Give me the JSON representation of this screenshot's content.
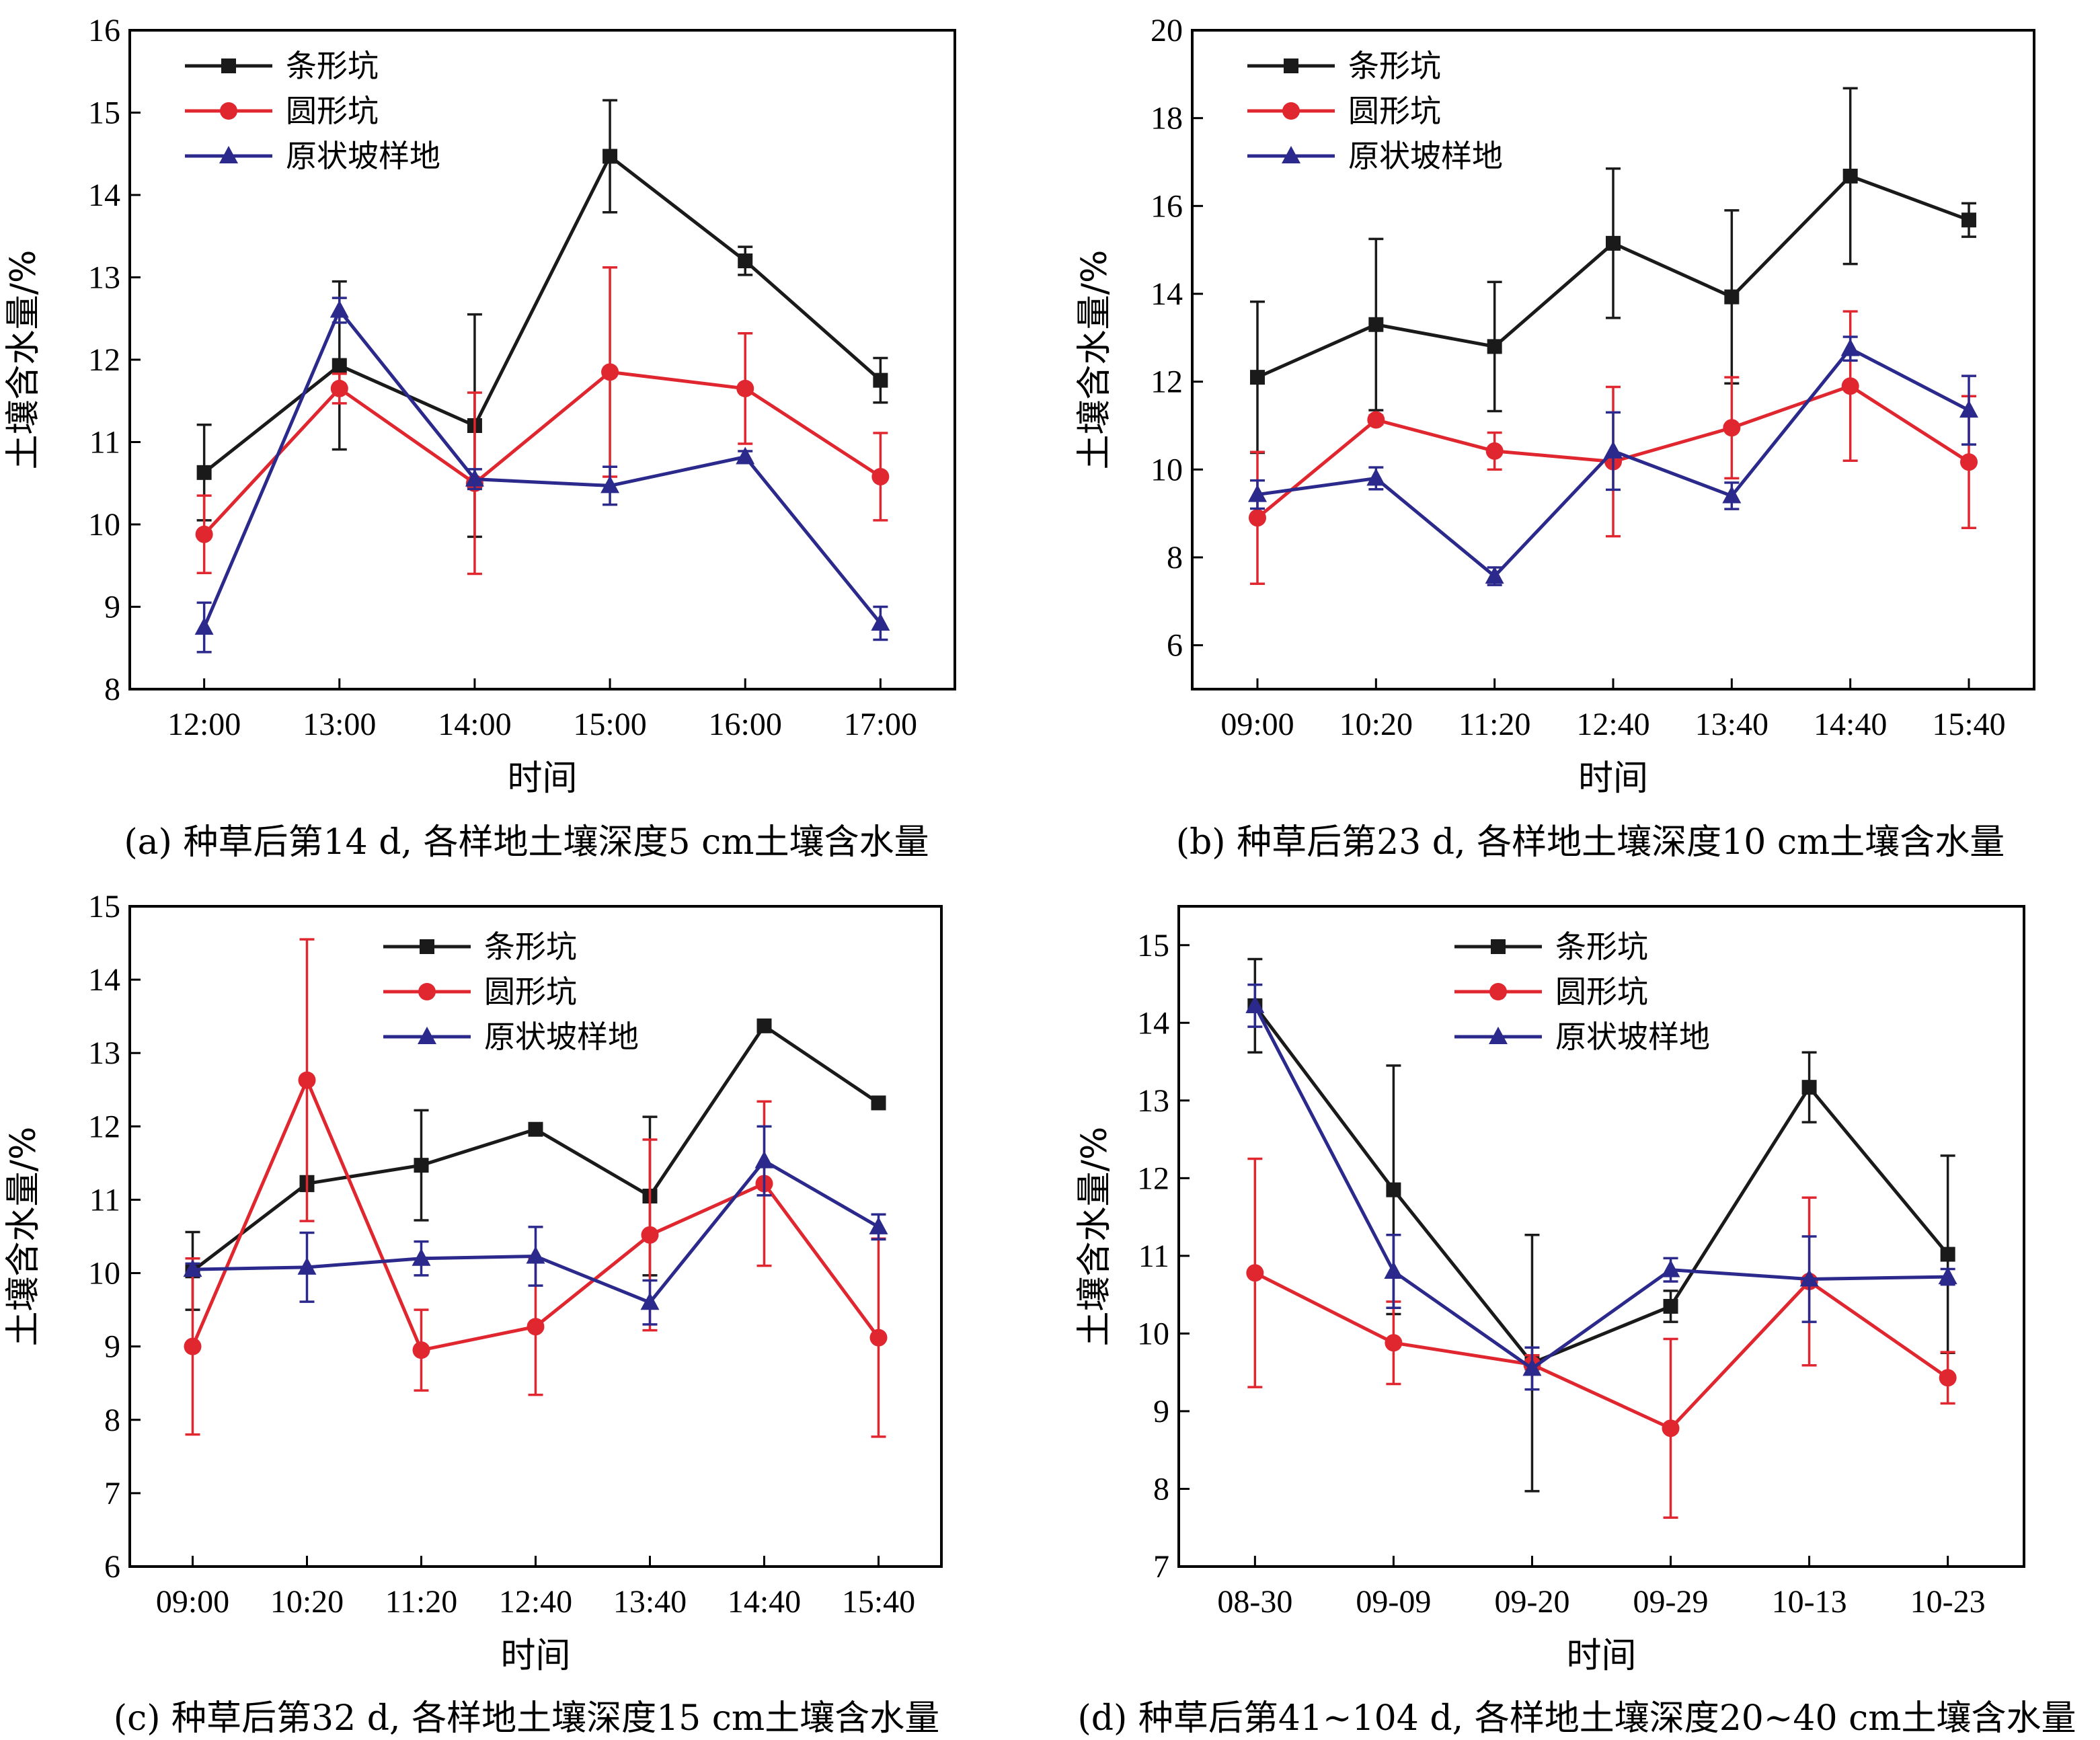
{
  "colors": {
    "条形坑": "#1a1a1a",
    "圆形坑": "#e0262e",
    "原状坡样地": "#2b2a8c"
  },
  "markers": {
    "条形坑": "square",
    "圆形坑": "circle",
    "原状坡样地": "triangle"
  },
  "chart_data": [
    {
      "type": "line",
      "caption": "(a) 种草后第14 d, 各样地土壤深度5 cm土壤含水量",
      "xlabel": "时间",
      "ylabel": "土壤含水量/%",
      "categories": [
        "12:00",
        "13:00",
        "14:00",
        "15:00",
        "16:00",
        "17:00"
      ],
      "ylim": [
        8,
        16
      ],
      "yticks": [
        8,
        9,
        10,
        11,
        12,
        13,
        14,
        15,
        16
      ],
      "legend_position": "top-left",
      "series": [
        {
          "name": "条形坑",
          "values": [
            10.63,
            11.93,
            11.2,
            14.47,
            13.2,
            11.75
          ],
          "errors": [
            0.58,
            1.02,
            1.35,
            0.68,
            0.17,
            0.27
          ]
        },
        {
          "name": "圆形坑",
          "values": [
            9.88,
            11.65,
            10.5,
            11.85,
            11.65,
            10.58
          ],
          "errors": [
            0.47,
            0.18,
            1.1,
            1.27,
            0.67,
            0.53
          ]
        },
        {
          "name": "原状坡样地",
          "values": [
            8.75,
            12.6,
            10.55,
            10.47,
            10.82,
            8.8
          ],
          "errors": [
            0.3,
            0.15,
            0.12,
            0.23,
            0.07,
            0.2
          ]
        }
      ]
    },
    {
      "type": "line",
      "caption": "(b) 种草后第23 d, 各样地土壤深度10 cm土壤含水量",
      "xlabel": "时间",
      "ylabel": "土壤含水量/%",
      "categories": [
        "09:00",
        "10:20",
        "11:20",
        "12:40",
        "13:40",
        "14:40",
        "15:40"
      ],
      "ylim": [
        5,
        20
      ],
      "yticks": [
        6,
        8,
        10,
        12,
        14,
        16,
        18,
        20
      ],
      "legend_position": "top-left",
      "series": [
        {
          "name": "条形坑",
          "values": [
            12.1,
            13.3,
            12.8,
            15.15,
            13.93,
            16.68,
            15.68
          ],
          "errors": [
            1.72,
            1.95,
            1.47,
            1.7,
            1.97,
            2.0,
            0.38
          ]
        },
        {
          "name": "圆形坑",
          "values": [
            8.9,
            11.13,
            10.42,
            10.18,
            10.95,
            11.9,
            10.17
          ],
          "errors": [
            1.5,
            0.1,
            0.42,
            1.7,
            1.15,
            1.7,
            1.5
          ]
        },
        {
          "name": "原状坡样地",
          "values": [
            9.43,
            9.8,
            7.57,
            10.42,
            9.4,
            12.75,
            11.35
          ],
          "errors": [
            0.32,
            0.25,
            0.2,
            0.88,
            0.3,
            0.27,
            0.78
          ]
        }
      ]
    },
    {
      "type": "line",
      "caption": "(c) 种草后第32 d, 各样地土壤深度15 cm土壤含水量",
      "xlabel": "时间",
      "ylabel": "土壤含水量/%",
      "categories": [
        "09:00",
        "10:20",
        "11:20",
        "12:40",
        "13:40",
        "14:40",
        "15:40"
      ],
      "ylim": [
        6,
        15
      ],
      "yticks": [
        6,
        7,
        8,
        9,
        10,
        11,
        12,
        13,
        14,
        15
      ],
      "legend_position": "top-right",
      "series": [
        {
          "name": "条形坑",
          "values": [
            10.03,
            11.22,
            11.47,
            11.96,
            11.05,
            13.37,
            12.32
          ],
          "errors": [
            0.53,
            0.1,
            0.75,
            0.05,
            1.08,
            0.05,
            0.05
          ]
        },
        {
          "name": "圆形坑",
          "values": [
            9.0,
            12.63,
            8.95,
            9.27,
            10.52,
            11.22,
            9.12
          ],
          "errors": [
            1.2,
            1.92,
            0.55,
            0.93,
            1.3,
            1.12,
            1.35
          ]
        },
        {
          "name": "原状坡样地",
          "values": [
            10.05,
            10.08,
            10.2,
            10.23,
            9.6,
            11.53,
            10.63
          ],
          "errors": [
            0.08,
            0.47,
            0.23,
            0.4,
            0.3,
            0.47,
            0.17
          ]
        }
      ]
    },
    {
      "type": "line",
      "caption": "(d) 种草后第41~104 d, 各样地土壤深度20~40 cm土壤含水量",
      "xlabel": "时间",
      "ylabel": "土壤含水量/%",
      "categories": [
        "08-30",
        "09-09",
        "09-20",
        "09-29",
        "10-13",
        "10-23"
      ],
      "ylim": [
        7,
        15.5
      ],
      "yticks": [
        7,
        8,
        9,
        10,
        11,
        12,
        13,
        14,
        15
      ],
      "legend_position": "top-right",
      "series": [
        {
          "name": "条形坑",
          "values": [
            14.22,
            11.85,
            9.62,
            10.35,
            13.17,
            11.02
          ],
          "errors": [
            0.6,
            1.6,
            1.65,
            0.2,
            0.45,
            1.27
          ]
        },
        {
          "name": "圆形坑",
          "values": [
            10.78,
            9.88,
            9.6,
            8.78,
            10.67,
            9.43
          ],
          "errors": [
            1.47,
            0.53,
            0.12,
            1.15,
            1.08,
            0.33
          ]
        },
        {
          "name": "原状坡样地",
          "values": [
            14.22,
            10.8,
            9.55,
            10.82,
            10.7,
            10.73
          ],
          "errors": [
            0.27,
            0.47,
            0.27,
            0.15,
            0.55,
            0.1
          ]
        }
      ]
    }
  ]
}
